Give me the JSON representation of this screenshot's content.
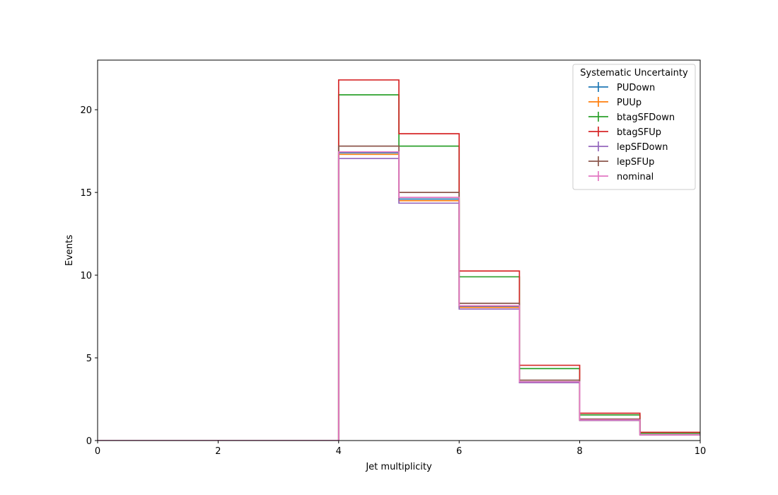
{
  "chart_data": {
    "type": "line",
    "drawstyle": "step-histogram",
    "xlabel": "Jet multiplicity",
    "ylabel": "Events",
    "xlim": [
      0,
      10
    ],
    "ylim": [
      0,
      23
    ],
    "xticks": [
      0,
      2,
      4,
      6,
      8,
      10
    ],
    "yticks": [
      0,
      5,
      10,
      15,
      20
    ],
    "grid": false,
    "bin_edges": [
      0,
      1,
      2,
      3,
      4,
      5,
      6,
      7,
      8,
      9,
      10
    ],
    "legend": {
      "title": "Systematic Uncertainty",
      "placement": "top-right"
    },
    "series": [
      {
        "name": "PUDown",
        "color": "#1f77b4",
        "values": [
          0,
          0,
          0,
          0,
          17.4,
          14.6,
          8.1,
          3.55,
          1.25,
          0.35
        ]
      },
      {
        "name": "PUUp",
        "color": "#ff7f0e",
        "values": [
          0,
          0,
          0,
          0,
          17.3,
          14.5,
          8.05,
          3.5,
          1.22,
          0.34
        ]
      },
      {
        "name": "btagSFDown",
        "color": "#2ca02c",
        "values": [
          0,
          0,
          0,
          0,
          20.9,
          17.8,
          9.9,
          4.35,
          1.55,
          0.45
        ]
      },
      {
        "name": "btagSFUp",
        "color": "#d62728",
        "values": [
          0,
          0,
          0,
          0,
          21.8,
          18.55,
          10.25,
          4.55,
          1.65,
          0.5
        ]
      },
      {
        "name": "lepSFDown",
        "color": "#9467bd",
        "values": [
          0,
          0,
          0,
          0,
          17.05,
          14.35,
          7.95,
          3.5,
          1.22,
          0.34
        ]
      },
      {
        "name": "lepSFUp",
        "color": "#8c564b",
        "values": [
          0,
          0,
          0,
          0,
          17.8,
          15.0,
          8.3,
          3.65,
          1.3,
          0.36
        ]
      },
      {
        "name": "nominal",
        "color": "#e377c2",
        "values": [
          0,
          0,
          0,
          0,
          17.45,
          14.7,
          8.15,
          3.55,
          1.25,
          0.35
        ]
      }
    ]
  }
}
